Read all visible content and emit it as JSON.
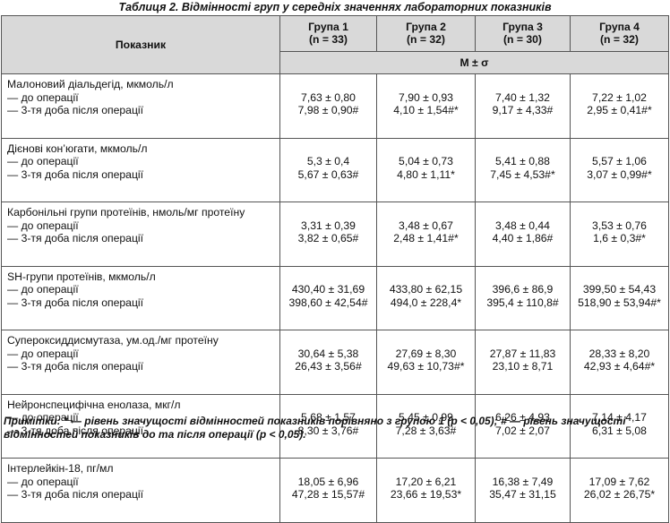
{
  "caption": "Таблиця 2. Відмінності груп у середніх значеннях лабораторних показників",
  "header": {
    "indicator": "Показник",
    "groups": [
      {
        "name": "Група 1",
        "n": "(n = 33)"
      },
      {
        "name": "Група 2",
        "n": "(n = 32)"
      },
      {
        "name": "Група 3",
        "n": "(n = 30)"
      },
      {
        "name": "Група 4",
        "n": "(n = 32)"
      }
    ],
    "stat": "M ± σ"
  },
  "rows": [
    {
      "title": "Малоновий діальдегід, мкмоль/л",
      "before_label": "— до операції",
      "after_label": "— 3-тя доба після операції",
      "cells": [
        [
          "7,63 ± 0,80",
          "7,98 ± 0,90#"
        ],
        [
          "7,90 ± 0,93",
          "4,10 ± 1,54#*"
        ],
        [
          "7,40 ± 1,32",
          "9,17 ± 4,33#"
        ],
        [
          "7,22 ± 1,02",
          "2,95 ± 0,41#*"
        ]
      ]
    },
    {
      "title": "Дієнові кон’югати, мкмоль/л",
      "before_label": "— до операції",
      "after_label": "— 3-тя доба після операції",
      "cells": [
        [
          "5,3 ± 0,4",
          "5,67 ± 0,63#"
        ],
        [
          "5,04 ± 0,73",
          "4,80 ± 1,11*"
        ],
        [
          "5,41 ± 0,88",
          "7,45 ± 4,53#*"
        ],
        [
          "5,57 ± 1,06",
          "3,07 ± 0,99#*"
        ]
      ]
    },
    {
      "title": "Карбонільні групи протеїнів, нмоль/мг протеїну",
      "before_label": "— до операції",
      "after_label": "— 3-тя доба після операції",
      "cells": [
        [
          "3,31 ± 0,39",
          "3,82 ± 0,65#"
        ],
        [
          "3,48 ± 0,67",
          "2,48 ± 1,41#*"
        ],
        [
          "3,48 ± 0,44",
          "4,40 ± 1,86#"
        ],
        [
          "3,53 ± 0,76",
          "1,6 ± 0,3#*"
        ]
      ]
    },
    {
      "title": "SH-групи протеїнів, мкмоль/л",
      "before_label": "— до операції",
      "after_label": "— 3-тя доба після операції",
      "cells": [
        [
          "430,40 ± 31,69",
          "398,60 ± 42,54#"
        ],
        [
          "433,80 ± 62,15",
          "494,0 ± 228,4*"
        ],
        [
          "396,6 ± 86,9",
          "395,4 ± 110,8#"
        ],
        [
          "399,50 ± 54,43",
          "518,90 ± 53,94#*"
        ]
      ]
    },
    {
      "title": "Супероксиддисмутаза, ум.од./мг протеїну",
      "before_label": "— до операції",
      "after_label": "— 3-тя доба після операції",
      "cells": [
        [
          "30,64 ± 5,38",
          "26,43 ± 3,56#"
        ],
        [
          "27,69 ± 8,30",
          "49,63 ± 10,73#*"
        ],
        [
          "27,87 ± 11,83",
          "23,10 ± 8,71"
        ],
        [
          "28,33 ± 8,20",
          "42,93 ± 4,64#*"
        ]
      ]
    },
    {
      "title": "Нейронспецифічна енолаза, мкг/л",
      "before_label": "— до операції",
      "after_label": "— 3-тя доба після операції",
      "cells": [
        [
          "5,68 ± 1,57",
          "8,30 ± 3,76#"
        ],
        [
          "5,45 ± 0,99",
          "7,28 ± 3,63#"
        ],
        [
          "6,26 ± 4,93",
          "7,02 ± 2,07"
        ],
        [
          "7,14 ± 4,17",
          "6,31 ± 5,08"
        ]
      ]
    },
    {
      "title": "Інтерлейкін-18, пг/мл",
      "before_label": "— до операції",
      "after_label": "— 3-тя доба після операції",
      "cells": [
        [
          "18,05 ± 6,96",
          "47,28 ± 15,57#"
        ],
        [
          "17,20 ± 6,21",
          "23,66 ± 19,53*"
        ],
        [
          "16,38 ± 7,49",
          "35,47 ± 31,15"
        ],
        [
          "17,09 ± 7,62",
          "26,02 ± 26,75*"
        ]
      ]
    }
  ],
  "notes": "Примітки: * — рівень значущості відмінностей показників порівняно з групою 1 (p < 0,05); # — рівень значущості відмінностей показників до та після операції (p < 0,05)."
}
